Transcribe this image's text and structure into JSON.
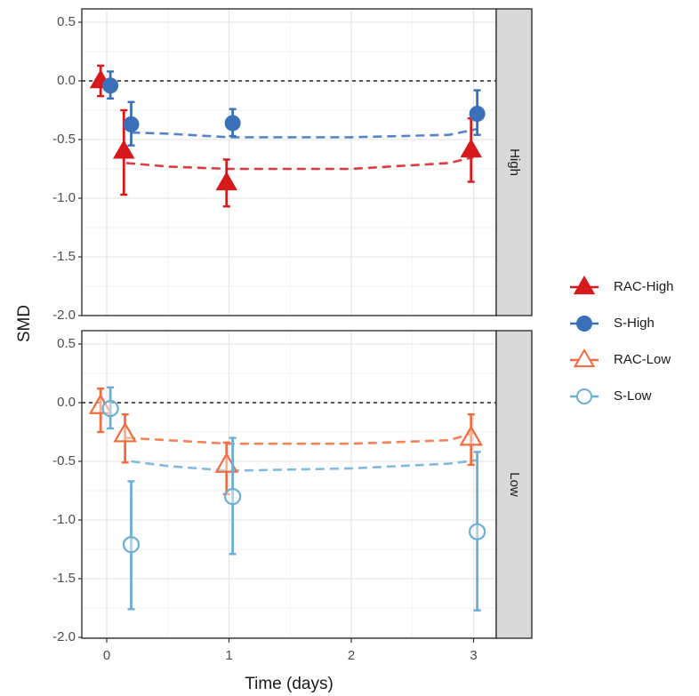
{
  "chart_data": {
    "type": "scatter",
    "xlabel": "Time (days)",
    "ylabel": "SMD",
    "xlim": [
      -0.1,
      3.2
    ],
    "ylim": [
      -2.0,
      0.55
    ],
    "x_ticks": [
      0,
      1,
      2,
      3
    ],
    "y_ticks": [
      0.5,
      0.0,
      -0.5,
      -1.0,
      -1.5,
      -2.0
    ],
    "x_tick_labels": [
      "0",
      "1",
      "2",
      "3"
    ],
    "y_tick_labels": [
      "0.5",
      "0.0",
      "-0.5",
      "-1.0",
      "-1.5",
      "-2.0"
    ],
    "grid": true,
    "reference_line": 0,
    "legend_position": "right",
    "legend": [
      {
        "label": "RAC-High",
        "color": "#d7191c",
        "marker": "triangle-filled"
      },
      {
        "label": "S-High",
        "color": "#3a6fba",
        "marker": "circle-filled"
      },
      {
        "label": "RAC-Low",
        "color": "#f26c3e",
        "marker": "triangle-open"
      },
      {
        "label": "S-Low",
        "color": "#6baed6",
        "marker": "circle-open"
      }
    ],
    "panels": [
      {
        "strip_label": "High",
        "series": [
          {
            "name": "RAC-High",
            "color": "#d7191c",
            "marker": "triangle",
            "filled": true,
            "points": [
              {
                "x": -0.05,
                "y": 0.0,
                "lo": -0.13,
                "hi": 0.13
              },
              {
                "x": 0.14,
                "y": -0.6,
                "lo": -0.97,
                "hi": -0.25
              },
              {
                "x": 0.98,
                "y": -0.87,
                "lo": -1.07,
                "hi": -0.67
              },
              {
                "x": 2.98,
                "y": -0.59,
                "lo": -0.86,
                "hi": -0.32
              }
            ],
            "fit": [
              [
                0.16,
                -0.7
              ],
              [
                0.5,
                -0.73
              ],
              [
                1.0,
                -0.75
              ],
              [
                2.0,
                -0.75
              ],
              [
                2.8,
                -0.7
              ],
              [
                3.0,
                -0.65
              ]
            ]
          },
          {
            "name": "S-High",
            "color": "#3a6fba",
            "marker": "circle",
            "filled": true,
            "points": [
              {
                "x": 0.03,
                "y": -0.04,
                "lo": -0.15,
                "hi": 0.08
              },
              {
                "x": 0.2,
                "y": -0.37,
                "lo": -0.55,
                "hi": -0.18
              },
              {
                "x": 1.03,
                "y": -0.36,
                "lo": -0.47,
                "hi": -0.24
              },
              {
                "x": 3.03,
                "y": -0.28,
                "lo": -0.46,
                "hi": -0.08
              }
            ],
            "fit": [
              [
                0.2,
                -0.44
              ],
              [
                0.5,
                -0.45
              ],
              [
                1.0,
                -0.48
              ],
              [
                2.0,
                -0.48
              ],
              [
                2.8,
                -0.46
              ],
              [
                3.03,
                -0.41
              ]
            ]
          }
        ]
      },
      {
        "strip_label": "Low",
        "series": [
          {
            "name": "RAC-Low",
            "color": "#f26c3e",
            "marker": "triangle",
            "filled": false,
            "points": [
              {
                "x": -0.05,
                "y": -0.03,
                "lo": -0.25,
                "hi": 0.12
              },
              {
                "x": 0.15,
                "y": -0.27,
                "lo": -0.51,
                "hi": -0.1
              },
              {
                "x": 0.98,
                "y": -0.53,
                "lo": -0.78,
                "hi": -0.34
              },
              {
                "x": 2.98,
                "y": -0.3,
                "lo": -0.53,
                "hi": -0.1
              }
            ],
            "fit": [
              [
                0.16,
                -0.3
              ],
              [
                0.5,
                -0.32
              ],
              [
                1.0,
                -0.35
              ],
              [
                2.0,
                -0.35
              ],
              [
                2.8,
                -0.32
              ],
              [
                3.0,
                -0.26
              ]
            ]
          },
          {
            "name": "S-Low",
            "color": "#6baed6",
            "marker": "circle",
            "filled": false,
            "points": [
              {
                "x": 0.03,
                "y": -0.05,
                "lo": -0.22,
                "hi": 0.13
              },
              {
                "x": 0.2,
                "y": -1.21,
                "lo": -1.76,
                "hi": -0.67
              },
              {
                "x": 1.03,
                "y": -0.8,
                "lo": -1.29,
                "hi": -0.3
              },
              {
                "x": 3.03,
                "y": -1.1,
                "lo": -1.77,
                "hi": -0.42
              }
            ],
            "fit": [
              [
                0.2,
                -0.5
              ],
              [
                0.5,
                -0.54
              ],
              [
                1.0,
                -0.58
              ],
              [
                2.0,
                -0.56
              ],
              [
                2.8,
                -0.52
              ],
              [
                3.03,
                -0.49
              ]
            ]
          }
        ]
      }
    ]
  }
}
